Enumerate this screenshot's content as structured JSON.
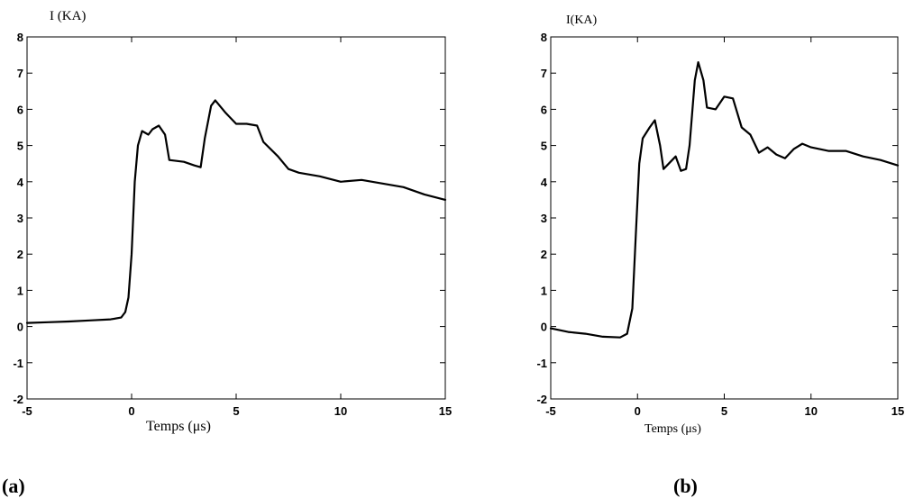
{
  "chart_data": [
    {
      "type": "line",
      "ylabel": "I (KA)",
      "xlabel": "Temps (μs)",
      "panel_label": "(a)",
      "xlim": [
        -5,
        15
      ],
      "ylim": [
        -2,
        8
      ],
      "xticks": [
        "-5",
        "0",
        "5",
        "10",
        "15"
      ],
      "yticks": [
        "-2",
        "-1",
        "0",
        "1",
        "2",
        "3",
        "4",
        "5",
        "6",
        "7",
        "8"
      ],
      "grid": false,
      "series": [
        {
          "points": [
            [
              -5,
              0.1
            ],
            [
              -4,
              0.12
            ],
            [
              -3,
              0.14
            ],
            [
              -2,
              0.17
            ],
            [
              -1,
              0.2
            ],
            [
              -0.5,
              0.25
            ],
            [
              -0.3,
              0.4
            ],
            [
              -0.15,
              0.8
            ],
            [
              0,
              2.0
            ],
            [
              0.15,
              4.0
            ],
            [
              0.3,
              5.0
            ],
            [
              0.5,
              5.4
            ],
            [
              0.8,
              5.3
            ],
            [
              1.0,
              5.45
            ],
            [
              1.3,
              5.55
            ],
            [
              1.6,
              5.3
            ],
            [
              1.8,
              4.6
            ],
            [
              2.5,
              4.55
            ],
            [
              3.0,
              4.45
            ],
            [
              3.3,
              4.4
            ],
            [
              3.5,
              5.2
            ],
            [
              3.8,
              6.1
            ],
            [
              4.0,
              6.25
            ],
            [
              4.5,
              5.9
            ],
            [
              5.0,
              5.6
            ],
            [
              5.5,
              5.6
            ],
            [
              6.0,
              5.55
            ],
            [
              6.3,
              5.1
            ],
            [
              7.0,
              4.7
            ],
            [
              7.5,
              4.35
            ],
            [
              8.0,
              4.25
            ],
            [
              9.0,
              4.15
            ],
            [
              10.0,
              4.0
            ],
            [
              11.0,
              4.05
            ],
            [
              12.0,
              3.95
            ],
            [
              13.0,
              3.85
            ],
            [
              14.0,
              3.65
            ],
            [
              15.0,
              3.5
            ]
          ]
        }
      ]
    },
    {
      "type": "line",
      "ylabel": "I(KA)",
      "xlabel": "Temps (μs)",
      "panel_label": "(b)",
      "xlim": [
        -5,
        15
      ],
      "ylim": [
        -2,
        8
      ],
      "xticks": [
        "-5",
        "0",
        "5",
        "10",
        "15"
      ],
      "yticks": [
        "-2",
        "-1",
        "0",
        "1",
        "2",
        "3",
        "4",
        "5",
        "6",
        "7",
        "8"
      ],
      "grid": false,
      "series": [
        {
          "points": [
            [
              -5,
              -0.05
            ],
            [
              -4,
              -0.15
            ],
            [
              -3,
              -0.2
            ],
            [
              -2,
              -0.28
            ],
            [
              -1,
              -0.3
            ],
            [
              -0.6,
              -0.2
            ],
            [
              -0.3,
              0.5
            ],
            [
              -0.1,
              2.5
            ],
            [
              0.1,
              4.5
            ],
            [
              0.3,
              5.2
            ],
            [
              0.7,
              5.5
            ],
            [
              1.0,
              5.7
            ],
            [
              1.3,
              5.0
            ],
            [
              1.5,
              4.35
            ],
            [
              1.8,
              4.5
            ],
            [
              2.2,
              4.7
            ],
            [
              2.5,
              4.3
            ],
            [
              2.8,
              4.35
            ],
            [
              3.0,
              5.0
            ],
            [
              3.3,
              6.8
            ],
            [
              3.5,
              7.3
            ],
            [
              3.8,
              6.8
            ],
            [
              4.0,
              6.05
            ],
            [
              4.5,
              6.0
            ],
            [
              5.0,
              6.35
            ],
            [
              5.5,
              6.3
            ],
            [
              6.0,
              5.5
            ],
            [
              6.5,
              5.3
            ],
            [
              7.0,
              4.8
            ],
            [
              7.5,
              4.95
            ],
            [
              8.0,
              4.75
            ],
            [
              8.5,
              4.65
            ],
            [
              9.0,
              4.9
            ],
            [
              9.5,
              5.05
            ],
            [
              10.0,
              4.95
            ],
            [
              11.0,
              4.85
            ],
            [
              12.0,
              4.85
            ],
            [
              13.0,
              4.7
            ],
            [
              14.0,
              4.6
            ],
            [
              15.0,
              4.45
            ]
          ]
        }
      ]
    }
  ]
}
